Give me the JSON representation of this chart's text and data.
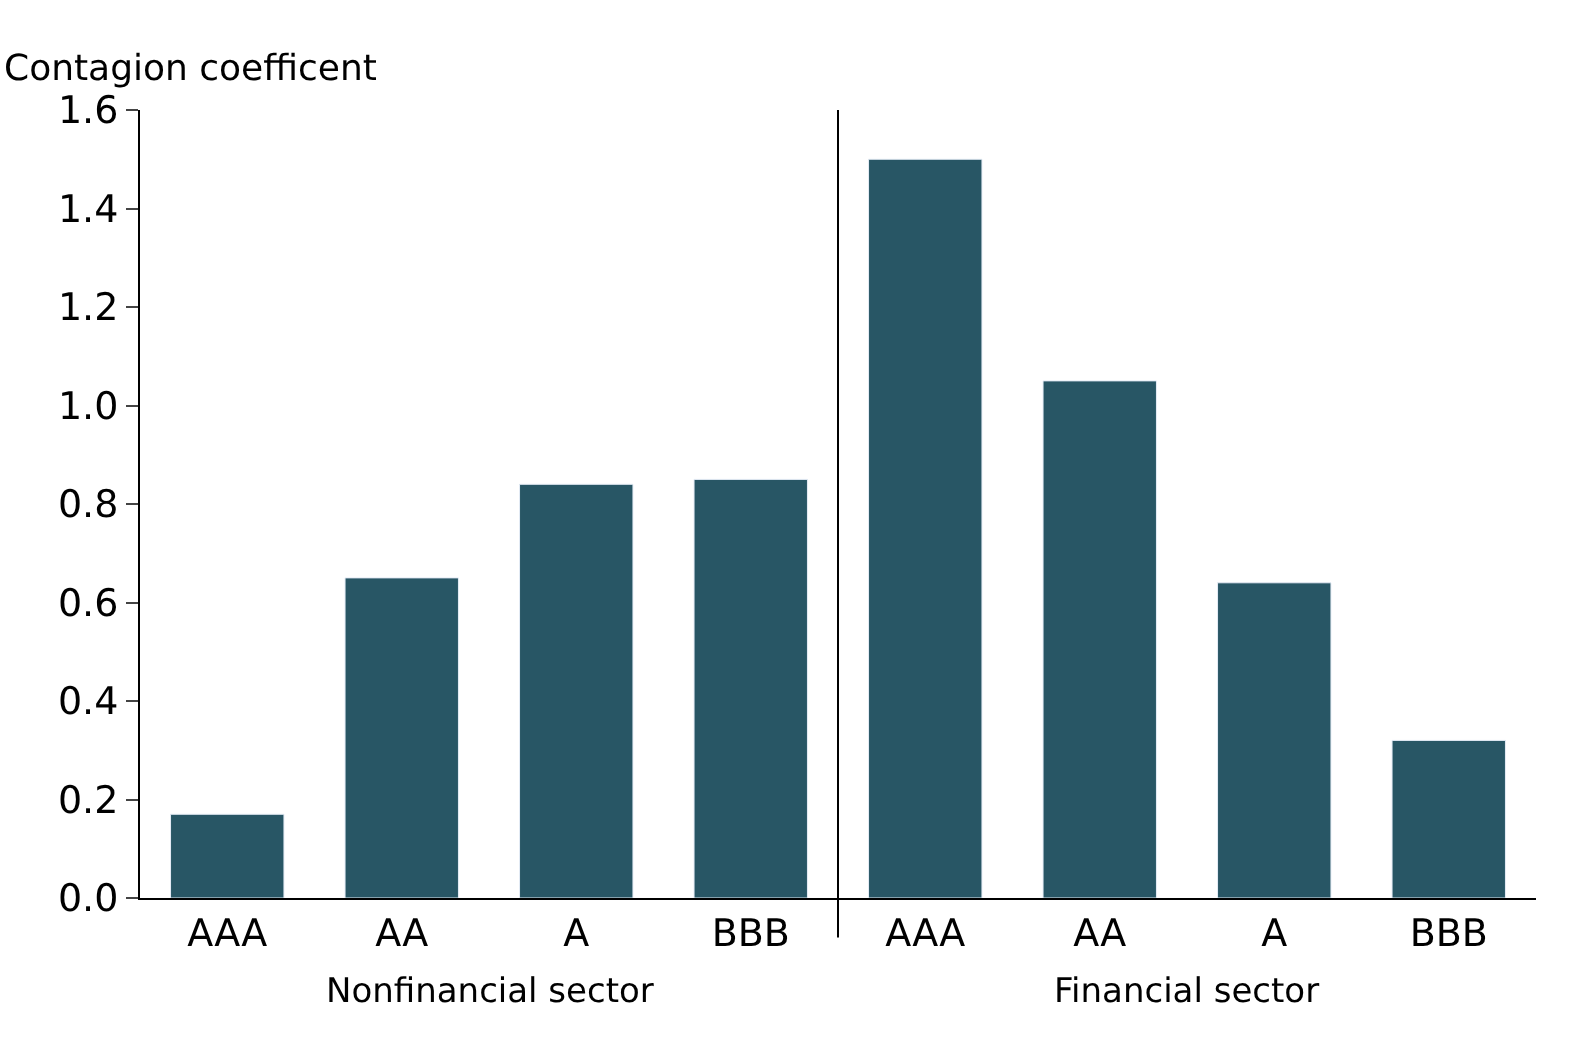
{
  "chart_data": {
    "type": "bar",
    "ylabel": "Contagion coefficent",
    "categories": [
      "AAA",
      "AA",
      "A",
      "BBB",
      "AAA",
      "AA",
      "A",
      "BBB"
    ],
    "values": [
      0.17,
      0.65,
      0.84,
      0.85,
      1.5,
      1.05,
      0.64,
      0.32
    ],
    "color": "#285665",
    "ylim": [
      0,
      1.6
    ],
    "yticks": [
      {
        "value": 0,
        "label": "0.0"
      },
      0.2,
      0.4,
      0.6,
      0.8,
      {
        "value": 1,
        "label": "1.0"
      },
      1.2,
      1.4,
      1.6
    ],
    "annotations": [
      "Nonfinancial sector",
      "Financial sector"
    ]
  }
}
